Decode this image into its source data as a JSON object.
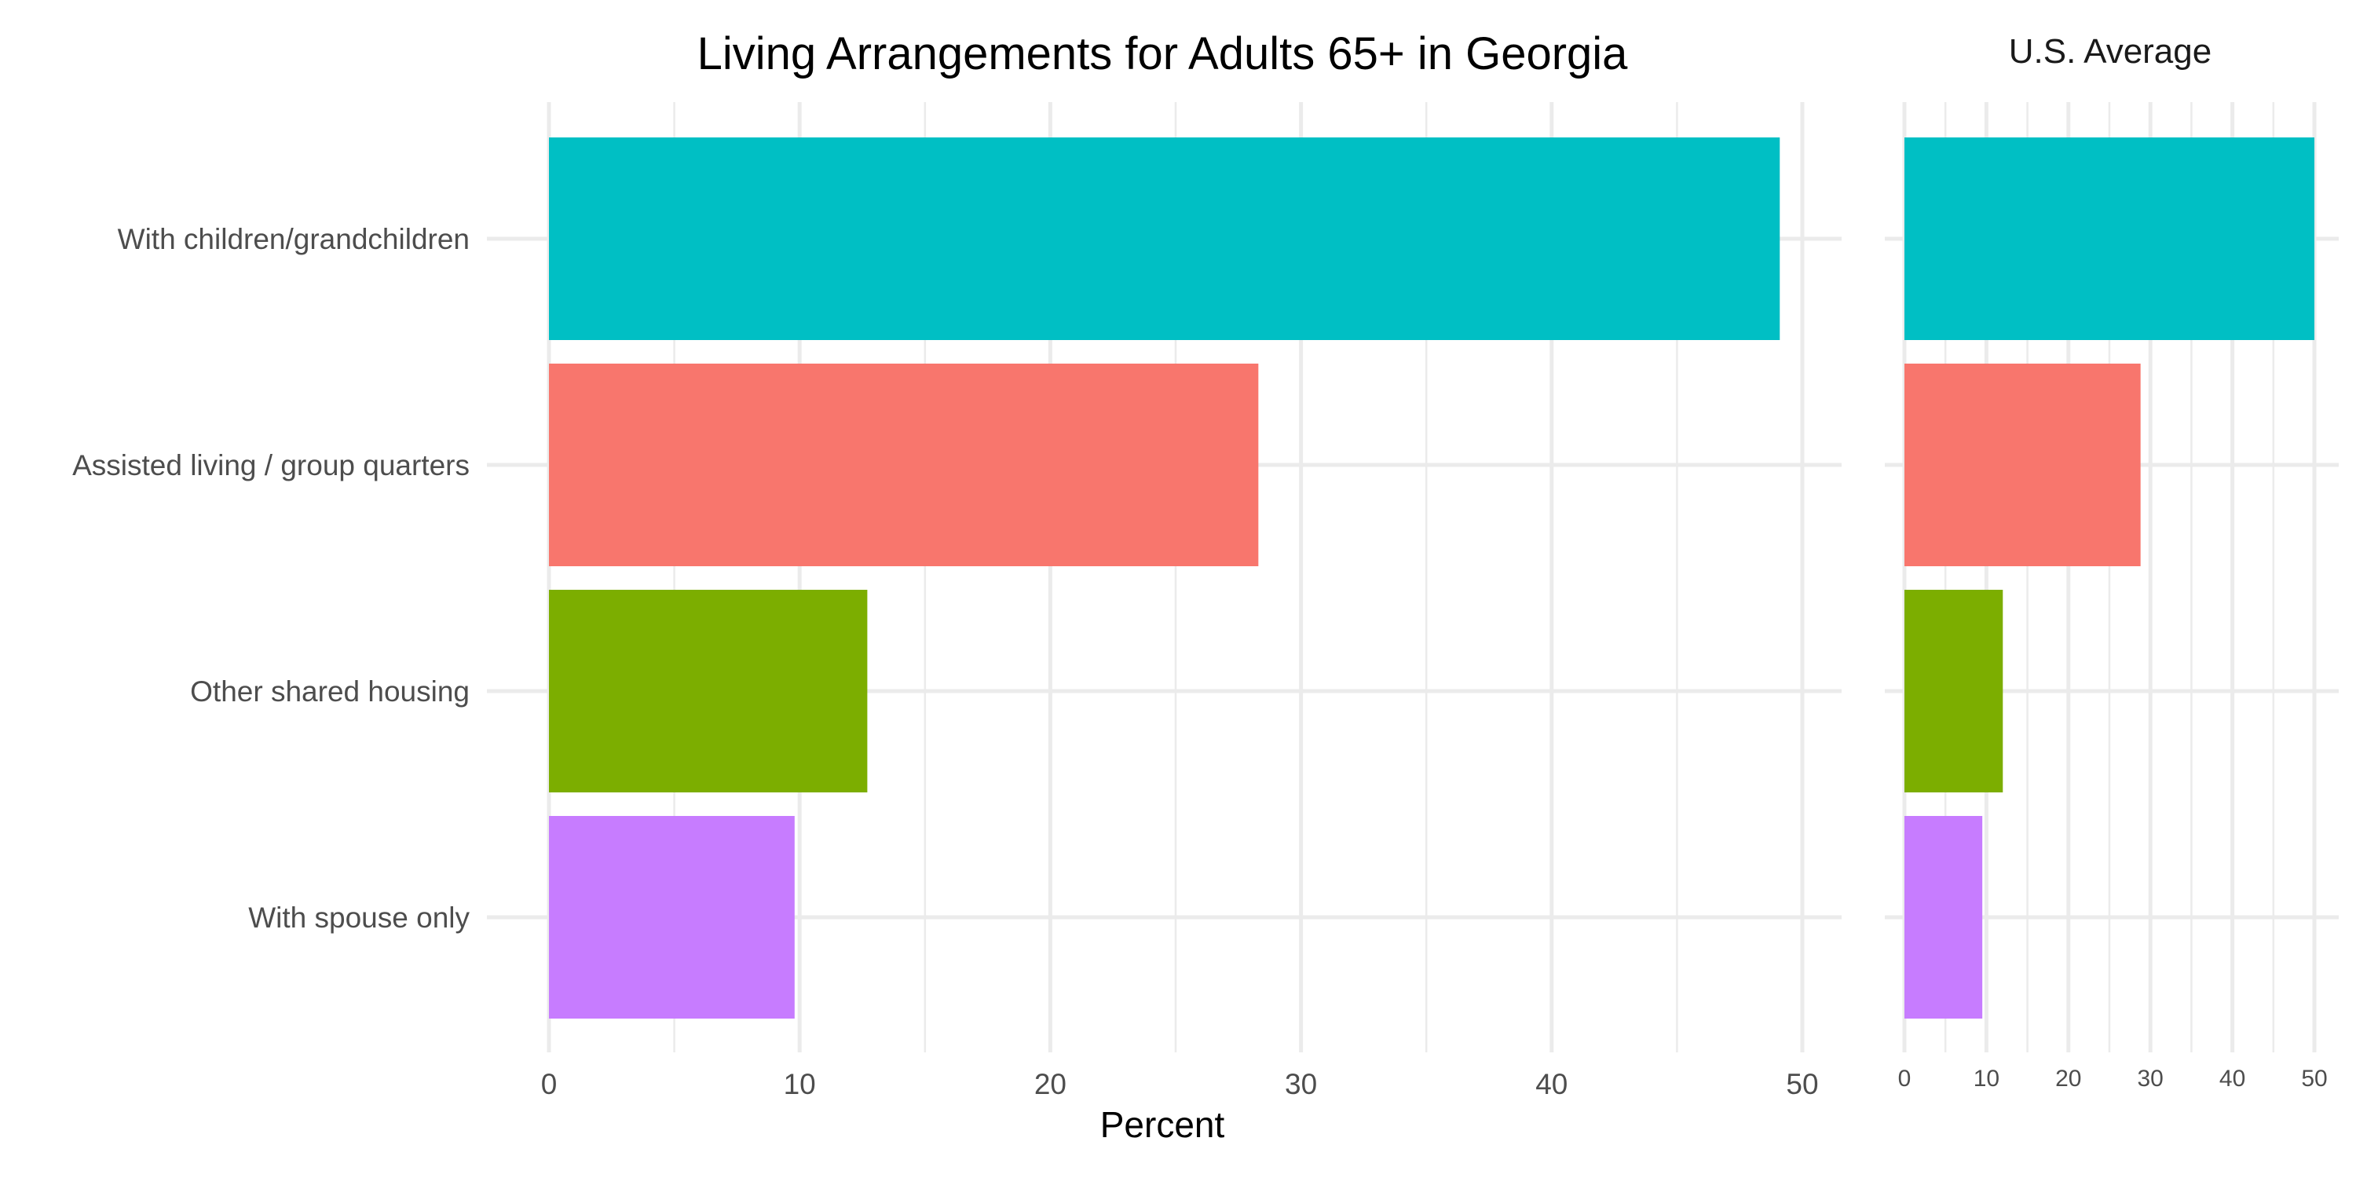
{
  "chart_data": [
    {
      "type": "bar",
      "orientation": "horizontal",
      "title": "Living Arrangements for Adults 65+ in Georgia",
      "xlabel": "Percent",
      "ylabel": "",
      "categories": [
        "With children/grandchildren",
        "Assisted living / group quarters",
        "Other shared housing",
        "With spouse only"
      ],
      "values": [
        49.1,
        28.3,
        12.7,
        9.8
      ],
      "colors": [
        "#00BFC4",
        "#F8766D",
        "#7CAE00",
        "#C77CFF"
      ],
      "xlim": [
        0,
        50
      ],
      "x_ticks": [
        0,
        10,
        20,
        30,
        40,
        50
      ],
      "grid": true,
      "legend": "none"
    },
    {
      "type": "bar",
      "orientation": "horizontal",
      "title": "U.S. Average",
      "xlabel": "",
      "categories": [
        "With children/grandchildren",
        "Assisted living / group quarters",
        "Other shared housing",
        "With spouse only"
      ],
      "values": [
        50.0,
        28.8,
        12.0,
        9.5
      ],
      "colors": [
        "#00BFC4",
        "#F8766D",
        "#7CAE00",
        "#C77CFF"
      ],
      "xlim": [
        0,
        50
      ],
      "x_ticks": [
        0,
        10,
        20,
        30,
        40,
        50
      ],
      "grid": true,
      "legend": "none"
    }
  ]
}
